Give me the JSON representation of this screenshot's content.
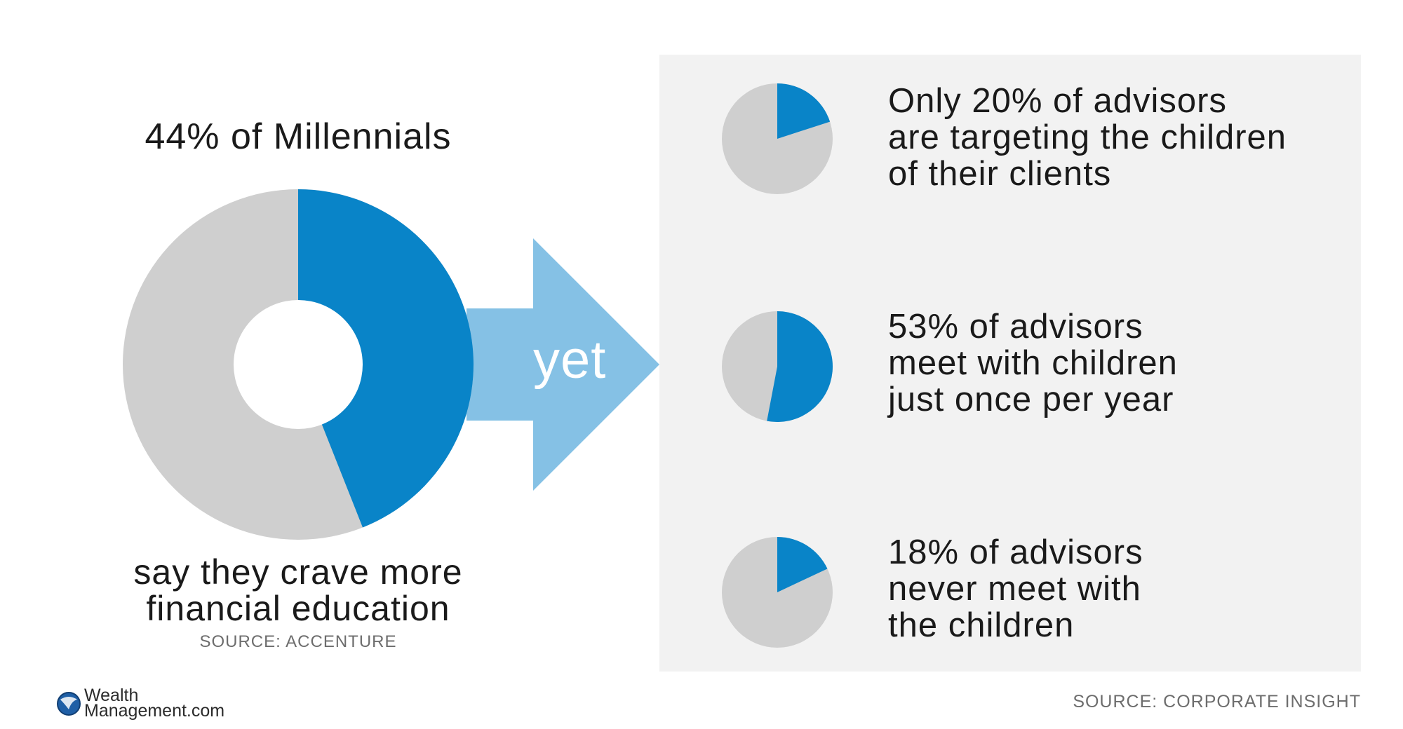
{
  "main": {
    "heading": "44% of Millennials",
    "caption_line1": "say they crave more",
    "caption_line2": "financial education",
    "source": "SOURCE: ACCENTURE"
  },
  "arrow": {
    "label": "yet"
  },
  "stats": [
    {
      "line1": "Only 20% of advisors",
      "line2": "are targeting the children",
      "line3": "of their clients"
    },
    {
      "line1": "53% of advisors",
      "line2": "meet with children",
      "line3": "just once per year"
    },
    {
      "line1": "18% of advisors",
      "line2": "never meet with",
      "line3": "the children"
    }
  ],
  "source_right": "SOURCE: CORPORATE INSIGHT",
  "logo": {
    "line1": "Wealth",
    "line2": "Management.com"
  },
  "colors": {
    "accent": "#0984c8",
    "gray": "#cfcfcf",
    "arrow": "#85c1e5",
    "panel": "#f2f2f2"
  },
  "chart_data": [
    {
      "type": "pie",
      "style": "donut",
      "labels": [
        "Millennials who crave more financial education",
        "Other"
      ],
      "values": [
        44,
        56
      ]
    },
    {
      "type": "pie",
      "labels": [
        "Advisors targeting children of clients",
        "Other"
      ],
      "values": [
        20,
        80
      ]
    },
    {
      "type": "pie",
      "labels": [
        "Advisors meeting children once per year",
        "Other"
      ],
      "values": [
        53,
        47
      ]
    },
    {
      "type": "pie",
      "labels": [
        "Advisors never meeting the children",
        "Other"
      ],
      "values": [
        18,
        82
      ]
    }
  ]
}
